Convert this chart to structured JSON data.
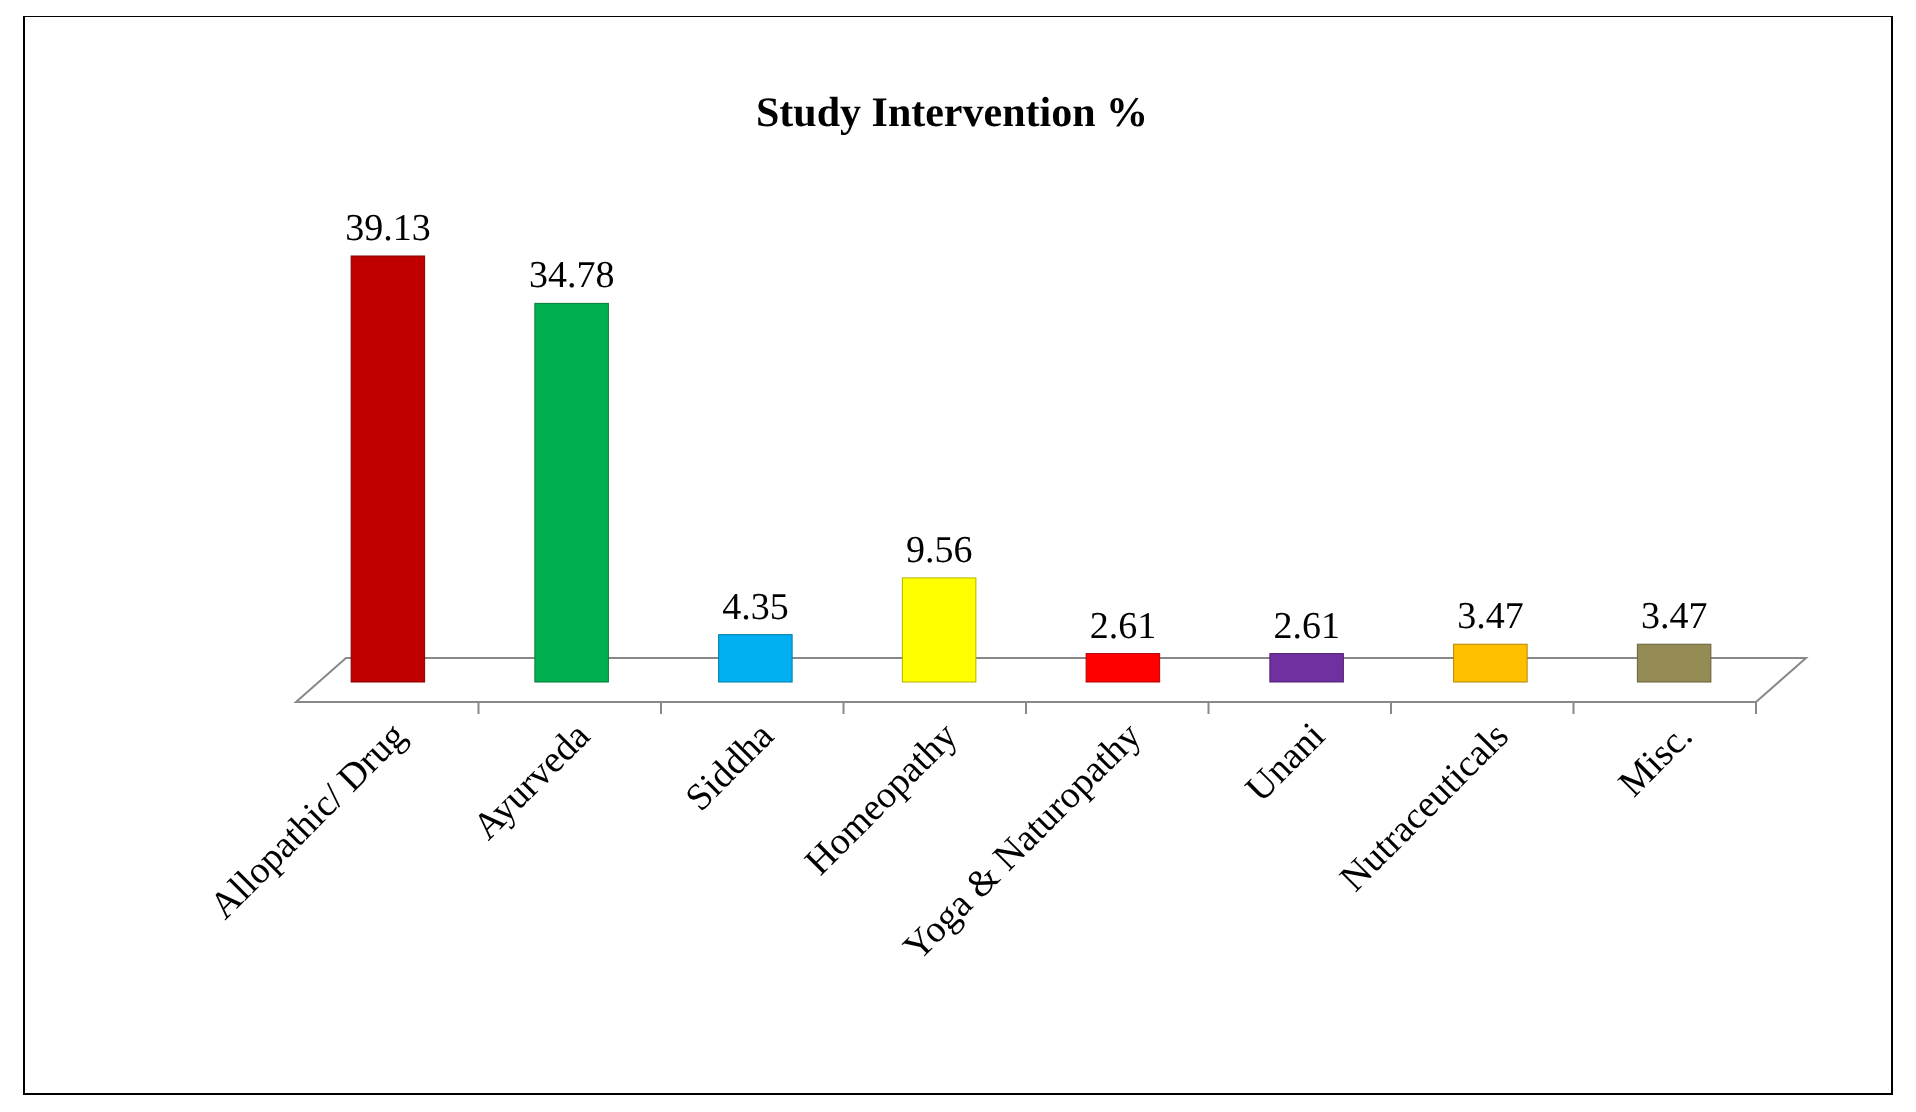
{
  "chart_data": {
    "type": "bar",
    "title": "Study Intervention %",
    "categories": [
      "Allopathic/ Drug",
      "Ayurveda",
      "Siddha",
      "Homeopathy",
      "Yoga & Naturopathy",
      "Unani",
      "Nutraceuticals",
      "Misc."
    ],
    "values": [
      39.13,
      34.78,
      4.35,
      9.56,
      2.61,
      2.61,
      3.47,
      3.47
    ],
    "colors": [
      "#c00000",
      "#00b050",
      "#00b0f0",
      "#ffff00",
      "#ff0000",
      "#7030a0",
      "#ffc000",
      "#948a54"
    ],
    "data_labels": true
  }
}
